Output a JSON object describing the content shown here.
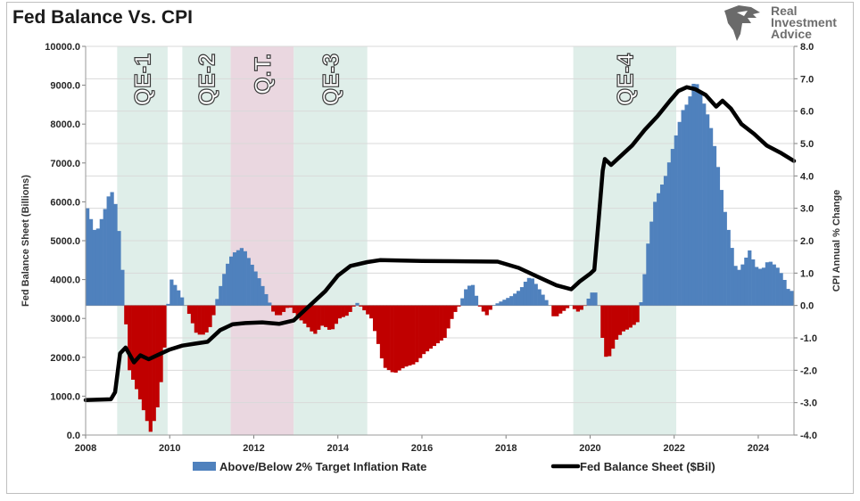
{
  "chart_data": {
    "type": "bar",
    "title": "Fed Balance Vs. CPI",
    "ylabel_left": "Fed Balance Sheet (Billions)",
    "ylabel_right": "CPI Annual % Change",
    "ylim_left": [
      0,
      10000
    ],
    "ylim_right": [
      -4,
      8
    ],
    "xlim": [
      2008,
      2024.85
    ],
    "left_ticks": [
      "0.0",
      "1000.0",
      "2000.0",
      "3000.0",
      "4000.0",
      "5000.0",
      "6000.0",
      "7000.0",
      "8000.0",
      "9000.0",
      "10000.0"
    ],
    "right_ticks": [
      "-4.0",
      "-3.0",
      "-2.0",
      "-1.0",
      "0.0",
      "1.0",
      "2.0",
      "3.0",
      "4.0",
      "5.0",
      "6.0",
      "7.0",
      "8.0"
    ],
    "x_ticks": [
      "2008",
      "2010",
      "2012",
      "2014",
      "2016",
      "2018",
      "2020",
      "2022",
      "2024"
    ],
    "grid": true,
    "legend_position": "bottom",
    "colors": {
      "positive": "#4f81bd",
      "negative": "#c00000",
      "line": "#000000",
      "qe_band": "#dfeee9",
      "qt_band": "#ead7e0"
    },
    "legend": [
      {
        "label": "Above/Below 2% Target Inflation Rate",
        "kind": "bar"
      },
      {
        "label": "Fed Balance Sheet ($Bil)",
        "kind": "line"
      }
    ],
    "shaded_periods": [
      {
        "label": "QE-1",
        "start": 2008.75,
        "end": 2009.95,
        "kind": "qe"
      },
      {
        "label": "QE-2",
        "start": 2010.3,
        "end": 2011.45,
        "kind": "qe"
      },
      {
        "label": "Q.T.",
        "start": 2011.45,
        "end": 2012.95,
        "kind": "qt"
      },
      {
        "label": "QE-3",
        "start": 2012.95,
        "end": 2014.7,
        "kind": "qe"
      },
      {
        "label": "QE-4",
        "start": 2019.6,
        "end": 2022.05,
        "kind": "qe"
      }
    ],
    "inflation_anchors": [
      [
        2008.0,
        3.0
      ],
      [
        2008.2,
        2.2
      ],
      [
        2008.4,
        2.9
      ],
      [
        2008.55,
        3.6
      ],
      [
        2008.65,
        3.3
      ],
      [
        2008.8,
        1.8
      ],
      [
        2008.9,
        -0.3
      ],
      [
        2009.0,
        -2.0
      ],
      [
        2009.2,
        -2.7
      ],
      [
        2009.35,
        -3.3
      ],
      [
        2009.5,
        -3.9
      ],
      [
        2009.65,
        -3.3
      ],
      [
        2009.8,
        -1.9
      ],
      [
        2009.9,
        -0.1
      ],
      [
        2010.0,
        0.8
      ],
      [
        2010.2,
        0.4
      ],
      [
        2010.4,
        -0.2
      ],
      [
        2010.6,
        -0.9
      ],
      [
        2010.8,
        -0.9
      ],
      [
        2010.95,
        -0.6
      ],
      [
        2011.1,
        0.3
      ],
      [
        2011.3,
        1.2
      ],
      [
        2011.45,
        1.6
      ],
      [
        2011.7,
        1.8
      ],
      [
        2011.9,
        1.3
      ],
      [
        2012.1,
        0.8
      ],
      [
        2012.3,
        0.2
      ],
      [
        2012.45,
        -0.3
      ],
      [
        2012.6,
        -0.3
      ],
      [
        2012.8,
        0.0
      ],
      [
        2012.95,
        -0.3
      ],
      [
        2013.2,
        -0.6
      ],
      [
        2013.4,
        -0.9
      ],
      [
        2013.6,
        -0.6
      ],
      [
        2013.8,
        -0.8
      ],
      [
        2014.0,
        -0.4
      ],
      [
        2014.2,
        -0.3
      ],
      [
        2014.4,
        0.1
      ],
      [
        2014.55,
        -0.1
      ],
      [
        2014.75,
        -0.4
      ],
      [
        2014.9,
        -1.1
      ],
      [
        2015.05,
        -1.9
      ],
      [
        2015.3,
        -2.1
      ],
      [
        2015.55,
        -1.9
      ],
      [
        2015.8,
        -1.8
      ],
      [
        2016.0,
        -1.5
      ],
      [
        2016.2,
        -1.3
      ],
      [
        2016.5,
        -1.0
      ],
      [
        2016.7,
        -0.3
      ],
      [
        2016.85,
        0.0
      ],
      [
        2017.0,
        0.5
      ],
      [
        2017.15,
        0.7
      ],
      [
        2017.35,
        -0.1
      ],
      [
        2017.5,
        -0.3
      ],
      [
        2017.65,
        0.0
      ],
      [
        2017.8,
        0.1
      ],
      [
        2017.95,
        0.2
      ],
      [
        2018.1,
        0.3
      ],
      [
        2018.3,
        0.5
      ],
      [
        2018.45,
        0.8
      ],
      [
        2018.55,
        0.9
      ],
      [
        2018.75,
        0.5
      ],
      [
        2018.9,
        0.2
      ],
      [
        2019.0,
        0.0
      ],
      [
        2019.1,
        -0.4
      ],
      [
        2019.3,
        -0.2
      ],
      [
        2019.5,
        0.0
      ],
      [
        2019.65,
        -0.2
      ],
      [
        2019.8,
        -0.1
      ],
      [
        2019.95,
        0.3
      ],
      [
        2020.05,
        0.5
      ],
      [
        2020.15,
        0.2
      ],
      [
        2020.25,
        -1.0
      ],
      [
        2020.35,
        -1.7
      ],
      [
        2020.45,
        -1.5
      ],
      [
        2020.6,
        -1.0
      ],
      [
        2020.75,
        -0.8
      ],
      [
        2020.9,
        -0.7
      ],
      [
        2021.0,
        -0.6
      ],
      [
        2021.1,
        -0.5
      ],
      [
        2021.2,
        0.4
      ],
      [
        2021.35,
        2.1
      ],
      [
        2021.5,
        3.2
      ],
      [
        2021.75,
        4.0
      ],
      [
        2021.95,
        5.0
      ],
      [
        2022.15,
        6.0
      ],
      [
        2022.3,
        6.3
      ],
      [
        2022.45,
        7.0
      ],
      [
        2022.6,
        6.5
      ],
      [
        2022.8,
        5.7
      ],
      [
        2022.95,
        4.7
      ],
      [
        2023.15,
        3.0
      ],
      [
        2023.3,
        2.0
      ],
      [
        2023.45,
        1.0
      ],
      [
        2023.6,
        1.3
      ],
      [
        2023.75,
        1.7
      ],
      [
        2023.9,
        1.2
      ],
      [
        2024.05,
        1.1
      ],
      [
        2024.2,
        1.4
      ],
      [
        2024.4,
        1.2
      ],
      [
        2024.55,
        0.9
      ],
      [
        2024.7,
        0.4
      ],
      [
        2024.8,
        0.5
      ]
    ],
    "balance_sheet": [
      [
        2008.0,
        900
      ],
      [
        2008.6,
        920
      ],
      [
        2008.7,
        1100
      ],
      [
        2008.82,
        2100
      ],
      [
        2008.95,
        2250
      ],
      [
        2009.15,
        1870
      ],
      [
        2009.3,
        2050
      ],
      [
        2009.5,
        1950
      ],
      [
        2009.7,
        2050
      ],
      [
        2010.0,
        2200
      ],
      [
        2010.3,
        2300
      ],
      [
        2010.6,
        2350
      ],
      [
        2010.9,
        2400
      ],
      [
        2011.2,
        2700
      ],
      [
        2011.5,
        2850
      ],
      [
        2011.8,
        2880
      ],
      [
        2012.2,
        2900
      ],
      [
        2012.6,
        2860
      ],
      [
        2012.95,
        2950
      ],
      [
        2013.3,
        3300
      ],
      [
        2013.7,
        3700
      ],
      [
        2014.0,
        4100
      ],
      [
        2014.3,
        4350
      ],
      [
        2014.7,
        4450
      ],
      [
        2015.0,
        4500
      ],
      [
        2016.0,
        4480
      ],
      [
        2017.0,
        4470
      ],
      [
        2017.8,
        4460
      ],
      [
        2018.3,
        4300
      ],
      [
        2018.8,
        4050
      ],
      [
        2019.2,
        3850
      ],
      [
        2019.55,
        3750
      ],
      [
        2019.75,
        3950
      ],
      [
        2020.0,
        4150
      ],
      [
        2020.1,
        4250
      ],
      [
        2020.2,
        5500
      ],
      [
        2020.3,
        6800
      ],
      [
        2020.35,
        7100
      ],
      [
        2020.5,
        6950
      ],
      [
        2020.7,
        7150
      ],
      [
        2021.0,
        7450
      ],
      [
        2021.3,
        7850
      ],
      [
        2021.6,
        8200
      ],
      [
        2021.9,
        8600
      ],
      [
        2022.1,
        8850
      ],
      [
        2022.3,
        8950
      ],
      [
        2022.5,
        8900
      ],
      [
        2022.75,
        8750
      ],
      [
        2023.0,
        8450
      ],
      [
        2023.15,
        8600
      ],
      [
        2023.35,
        8400
      ],
      [
        2023.6,
        8000
      ],
      [
        2023.9,
        7750
      ],
      [
        2024.2,
        7450
      ],
      [
        2024.55,
        7250
      ],
      [
        2024.85,
        7050
      ]
    ]
  }
}
